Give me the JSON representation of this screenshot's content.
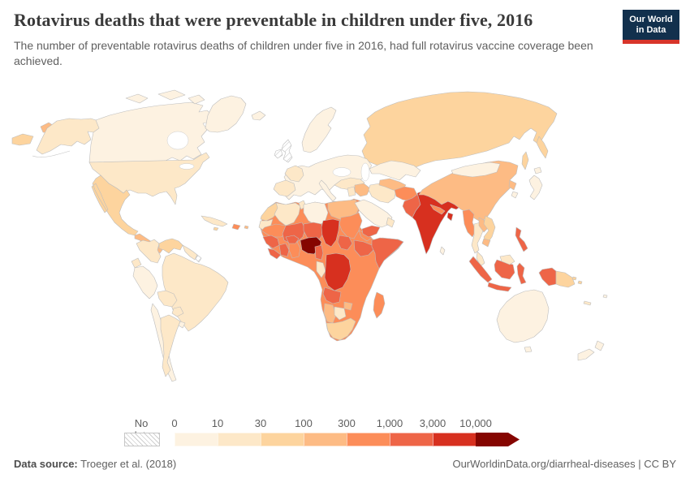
{
  "header": {
    "title": "Rotavirus deaths that were preventable in children under five, 2016",
    "subtitle": "The number of preventable rotavirus deaths of children under five in 2016, had full rotavirus vaccine coverage been achieved."
  },
  "logo": {
    "line1": "Our World",
    "line2": "in Data",
    "bg_color": "#12304d",
    "stripe_color": "#d8352a"
  },
  "chart_data": {
    "type": "choropleth-map",
    "title": "Rotavirus deaths that were preventable in children under five, 2016",
    "unit": "preventable rotavirus deaths",
    "year": "2016",
    "legend": {
      "no_data_label": "No data",
      "tick_labels": [
        "0",
        "10",
        "30",
        "100",
        "300",
        "1,000",
        "3,000",
        "10,000"
      ],
      "position": "bottom"
    },
    "bins": [
      {
        "label": "0-10",
        "color": "#fdf2e1"
      },
      {
        "label": "10-30",
        "color": "#fde8c8"
      },
      {
        "label": "30-100",
        "color": "#fdd49e"
      },
      {
        "label": "100-300",
        "color": "#fdbb84"
      },
      {
        "label": "300-1,000",
        "color": "#fc8d59"
      },
      {
        "label": "1,000-3,000",
        "color": "#ee6547"
      },
      {
        "label": "3,000-10,000",
        "color": "#d7301f"
      },
      {
        "label": "10,000+",
        "color": "#850500"
      },
      {
        "label": "No data",
        "color": "hatch"
      }
    ],
    "countries": {
      "canada": "0-10",
      "greenland": "0-10",
      "usa": "10-30",
      "mexico": "30-100",
      "central-america": "100-300",
      "cuba": "10-30",
      "hispaniola": "300-1,000",
      "jamaica": "30-100",
      "puerto-rico": "100-300",
      "colombia": "10-30",
      "venezuela": "30-100",
      "guyana-suriname": "10-30",
      "french-guiana": "No data",
      "ecuador": "10-30",
      "peru": "0-10",
      "brazil": "10-30",
      "bolivia": "10-30",
      "paraguay": "10-30",
      "chile": "0-10",
      "argentina": "10-30",
      "uruguay": "0-10",
      "iceland": "0-10",
      "united-kingdom": "No data",
      "ireland": "No data",
      "scandinavia": "0-10",
      "europe": "0-10",
      "france": "10-30",
      "iberia": "10-30",
      "italy": "0-10",
      "turkey": "10-30",
      "russia": "30-100",
      "russia-chukotka": "100-300",
      "russia-west-edge": "30-100",
      "kazakhstan": "0-10",
      "central-asia": "100-300",
      "mongolia": "0-10",
      "china": "100-300",
      "north-korea": "100-300",
      "south-korea": "0-10",
      "japan": "0-10",
      "morocco": "30-100",
      "western-sahara": "10-30",
      "algeria": "10-30",
      "tunisia": "10-30",
      "libya": "0-10",
      "egypt": "100-300",
      "mauritania": "300-1,000",
      "mali": "1,000-3,000",
      "niger": "1,000-3,000",
      "chad": "3,000-10,000",
      "sudan": "300-1,000",
      "eritrea": "300-1,000",
      "africa-base": "300-1,000",
      "guinea": "1,000-3,000",
      "sierra-leone": "1,000-3,000",
      "cote-divoire": "1,000-3,000",
      "ghana": "300-1,000",
      "burkina-faso": "1,000-3,000",
      "nigeria": "10,000+",
      "cameroon": "1,000-3,000",
      "gabon-congo": "10-30",
      "south-sudan": "1,000-3,000",
      "ethiopia": "1,000-3,000",
      "somalia": "1,000-3,000",
      "dr-congo": "3,000-10,000",
      "angola": "1,000-3,000",
      "zimbabwe": "100-300",
      "namibia": "100-300",
      "botswana": "10-30",
      "south-africa": "30-100",
      "madagascar": "300-1,000",
      "saudi-arabia": "0-10",
      "yemen": "1,000-3,000",
      "oman": "10-30",
      "iraq": "100-300",
      "syria-jordan": "10-30",
      "iran": "10-30",
      "afghanistan": "300-1,000",
      "pakistan": "1,000-3,000",
      "india": "3,000-10,000",
      "nepal": "300-1,000",
      "bangladesh": "3,000-10,000",
      "sri-lanka": "0-10",
      "myanmar": "300-1,000",
      "thailand": "10-30",
      "laos": "100-300",
      "vietnam": "30-100",
      "cambodia": "100-300",
      "malaysia": "10-30",
      "borneo-malaysia": "10-30",
      "indonesia": "1,000-3,000",
      "philippines": "1,000-3,000",
      "papua-new-guinea": "30-100",
      "australia": "0-10",
      "new-zealand": "0-10",
      "solomon-islands": "30-100",
      "fiji": "0-10",
      "new-caledonia": "10-30"
    }
  },
  "footer": {
    "source_label": "Data source:",
    "source_text": " Troeger et al. (2018)",
    "right_text": "OurWorldinData.org/diarrheal-diseases | CC BY"
  }
}
